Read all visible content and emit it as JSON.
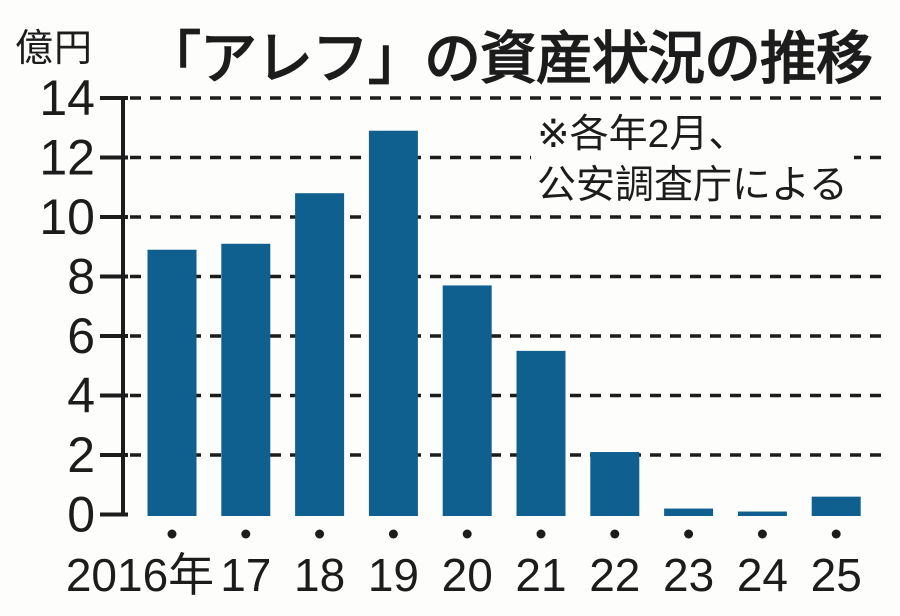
{
  "chart_data": {
    "type": "bar",
    "title": "「アレフ」の資産状況の推移",
    "y_unit_label": "億円",
    "note_lines": [
      "※各年2月、",
      "公安調査庁による"
    ],
    "categories": [
      "2016年",
      "17",
      "18",
      "19",
      "20",
      "21",
      "22",
      "23",
      "24",
      "25"
    ],
    "values": [
      8.9,
      9.1,
      10.8,
      12.9,
      7.7,
      5.5,
      2.1,
      0.2,
      0.1,
      0.6
    ],
    "ylabel": "億円",
    "ylim": [
      0,
      14
    ],
    "yticks": [
      0,
      2,
      4,
      6,
      8,
      10,
      12,
      14
    ],
    "grid": "horizontal-dashed",
    "legend": "none",
    "x_marker": "dot",
    "colors": {
      "bar": "#0f608f",
      "text": "#1c1c1c",
      "background": "#fdfdfb"
    }
  }
}
